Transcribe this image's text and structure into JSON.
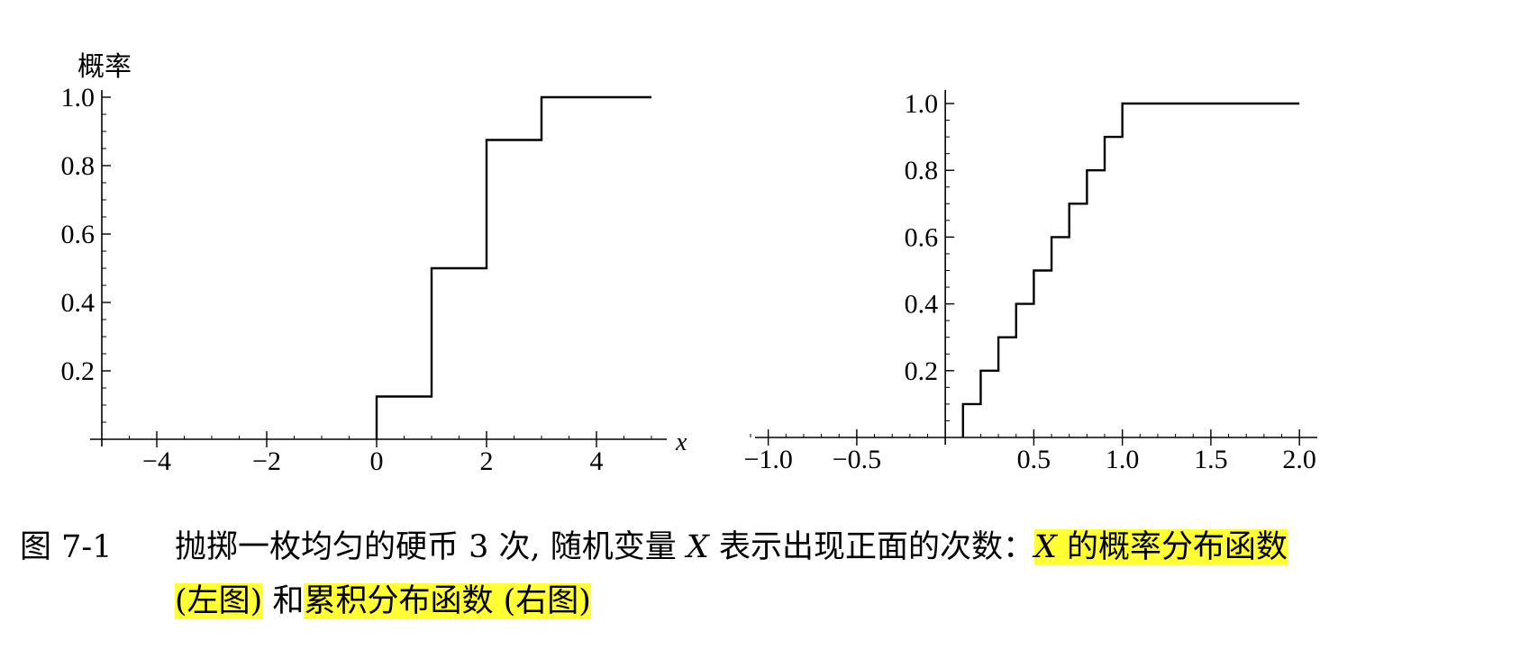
{
  "caption": {
    "label": "图 7-1",
    "text_before_highlight": "抛掷一枚均匀的硬币 3 次, 随机变量",
    "variable": "X",
    "text_middle": "表示出现正面的次数：",
    "highlight_1_var": "X",
    "highlight_1_rest": " 的概率分布函数",
    "highlight_1_end": "(左图)",
    "connector": " 和",
    "highlight_2": "累积分布函数 (右图)",
    "highlight_color": "#ffff33"
  },
  "chart_data": [
    {
      "type": "line",
      "step": true,
      "ylabel": "概率",
      "xlabel": "x",
      "xlim": [
        -5,
        5
      ],
      "ylim": [
        0,
        1.0
      ],
      "x_ticks": [
        -4,
        -2,
        0,
        2,
        4
      ],
      "x_tick_labels": [
        "−4",
        "−2",
        "0",
        "2",
        "4"
      ],
      "y_ticks": [
        0.2,
        0.4,
        0.6,
        0.8,
        1.0
      ],
      "y_tick_labels": [
        "0.2",
        "0.4",
        "0.6",
        "0.8",
        "1.0"
      ],
      "series": [
        {
          "x": [
            0,
            1,
            2,
            3,
            5
          ],
          "y": [
            0.125,
            0.5,
            0.875,
            1.0,
            1.0
          ]
        }
      ],
      "line_color": "#000000"
    },
    {
      "type": "line",
      "step": true,
      "xlim": [
        -1.1,
        2.05
      ],
      "ylim": [
        0,
        1.0
      ],
      "x_ticks": [
        -1.0,
        -0.5,
        0.5,
        1.0,
        1.5,
        2.0
      ],
      "x_tick_labels": [
        "−1.0",
        "−0.5",
        "0.5",
        "1.0",
        "1.5",
        "2.0"
      ],
      "y_ticks": [
        0.2,
        0.4,
        0.6,
        0.8,
        1.0
      ],
      "y_tick_labels": [
        "0.2",
        "0.4",
        "0.6",
        "0.8",
        "1.0"
      ],
      "series": [
        {
          "x": [
            0.1,
            0.2,
            0.3,
            0.4,
            0.5,
            0.6,
            0.7,
            0.8,
            0.9,
            1.0,
            2.0
          ],
          "y": [
            0.1,
            0.2,
            0.3,
            0.4,
            0.5,
            0.6,
            0.7,
            0.8,
            0.9,
            1.0,
            1.0
          ]
        }
      ],
      "line_color": "#000000"
    }
  ]
}
